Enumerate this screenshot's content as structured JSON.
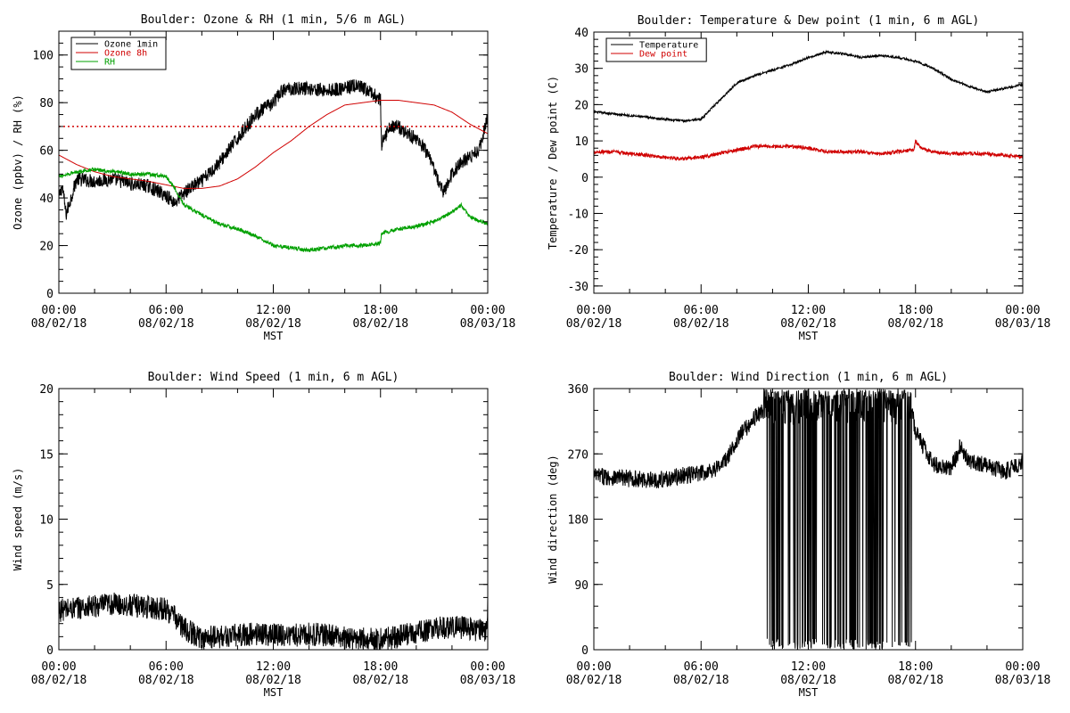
{
  "chart_data": [
    {
      "type": "line",
      "title": "Boulder: Ozone & RH (1 min, 5/6 m AGL)",
      "xlabel": "MST",
      "ylabel": "Ozone (ppbv) / RH (%)",
      "ylim": [
        0,
        110
      ],
      "yticks": [
        "0",
        "20",
        "40",
        "60",
        "80",
        "100"
      ],
      "xticks": [
        {
          "time": "00:00",
          "date": "08/02/18"
        },
        {
          "time": "06:00",
          "date": "08/02/18"
        },
        {
          "time": "12:00",
          "date": "08/02/18"
        },
        {
          "time": "18:00",
          "date": "08/02/18"
        },
        {
          "time": "00:00",
          "date": "08/03/18"
        }
      ],
      "legend_position": "top-left",
      "reference_line": {
        "value": 70,
        "color": "#d00000",
        "style": "dotted"
      },
      "series": [
        {
          "name": "Ozone 1min",
          "color": "#000000",
          "noise": 3.0,
          "x": [
            0,
            0.2,
            0.4,
            1,
            2,
            3,
            4,
            5,
            6,
            6.5,
            7,
            7.5,
            8,
            9,
            10,
            11,
            12,
            12.5,
            13,
            14,
            15,
            16,
            16.5,
            17,
            17.5,
            18,
            18.05,
            18.5,
            19,
            19.5,
            20,
            20.5,
            21,
            21.5,
            22,
            22.5,
            23,
            23.5,
            24
          ],
          "y": [
            40,
            45,
            33,
            48,
            47,
            48,
            46,
            45,
            41,
            38,
            42,
            45,
            47,
            55,
            65,
            75,
            80,
            85,
            86,
            86,
            85,
            86,
            87,
            86,
            84,
            81,
            62,
            70,
            70,
            67,
            65,
            60,
            52,
            42,
            50,
            55,
            57,
            60,
            74
          ]
        },
        {
          "name": "Ozone 8h",
          "color": "#d00000",
          "noise": 0,
          "x": [
            0,
            1,
            2,
            3,
            4,
            5,
            6,
            7,
            8,
            9,
            10,
            11,
            12,
            13,
            14,
            15,
            16,
            17,
            17.5,
            18,
            19,
            20,
            21,
            22,
            23,
            24
          ],
          "y": [
            58,
            54,
            51,
            49,
            48,
            47,
            45.5,
            44,
            44,
            45,
            48,
            53,
            59,
            64,
            70,
            75,
            79,
            80,
            80.5,
            81,
            81,
            80,
            79,
            76,
            71,
            67
          ]
        },
        {
          "name": "RH",
          "color": "#00a000",
          "noise": 0.8,
          "x": [
            0,
            1,
            2,
            3,
            4,
            5,
            6,
            6.5,
            7,
            8,
            9,
            10,
            11,
            12,
            13,
            14,
            15,
            16,
            17,
            18,
            18.05,
            19,
            20,
            21,
            22,
            22.5,
            23,
            24
          ],
          "y": [
            49,
            51,
            52,
            51,
            50,
            50,
            49,
            44,
            37,
            33,
            29,
            27,
            24,
            20,
            19,
            18,
            19,
            20,
            20,
            21,
            25,
            27,
            28,
            30,
            34,
            37,
            32,
            29
          ]
        }
      ]
    },
    {
      "type": "line",
      "title": "Boulder: Temperature & Dew point (1 min, 6 m AGL)",
      "xlabel": "MST",
      "ylabel": "Temperature / Dew point (C)",
      "ylim": [
        -32,
        40
      ],
      "yticks": [
        "-30",
        "-20",
        "-10",
        "0",
        "10",
        "20",
        "30",
        "40"
      ],
      "xticks": [
        {
          "time": "00:00",
          "date": "08/02/18"
        },
        {
          "time": "06:00",
          "date": "08/02/18"
        },
        {
          "time": "12:00",
          "date": "08/02/18"
        },
        {
          "time": "18:00",
          "date": "08/02/18"
        },
        {
          "time": "00:00",
          "date": "08/03/18"
        }
      ],
      "legend_position": "top-left",
      "series": [
        {
          "name": "Temperature",
          "color": "#000000",
          "noise": 0.3,
          "x": [
            0,
            1,
            2,
            3,
            4,
            5,
            6,
            7,
            8,
            9,
            10,
            11,
            12,
            13,
            14,
            15,
            16,
            17,
            18,
            19,
            20,
            21,
            22,
            23,
            24
          ],
          "y": [
            18,
            17.5,
            17,
            16.5,
            16,
            15.5,
            16,
            21,
            26,
            28,
            29.5,
            31,
            33,
            34.5,
            34,
            33,
            33.5,
            33,
            32,
            30,
            27,
            25,
            23.5,
            24.5,
            25.5
          ]
        },
        {
          "name": "Dew point",
          "color": "#d00000",
          "noise": 0.5,
          "x": [
            0,
            1,
            2,
            3,
            4,
            5,
            6,
            7,
            8,
            9,
            10,
            11,
            12,
            13,
            14,
            15,
            16,
            17,
            17.9,
            18,
            18.3,
            19,
            20,
            21,
            22,
            23,
            24
          ],
          "y": [
            7,
            7,
            6.5,
            6,
            5.5,
            5,
            5.5,
            6.5,
            7.5,
            8.5,
            8.5,
            8.5,
            8,
            7,
            7,
            7,
            6.5,
            7,
            7.5,
            10,
            8,
            7,
            6.5,
            6.5,
            6.5,
            6,
            5.5
          ]
        }
      ]
    },
    {
      "type": "line",
      "title": "Boulder: Wind Speed (1 min, 6 m AGL)",
      "xlabel": "MST",
      "ylabel": "Wind speed (m/s)",
      "ylim": [
        0,
        20
      ],
      "yticks": [
        "0",
        "5",
        "10",
        "15",
        "20"
      ],
      "xticks": [
        {
          "time": "00:00",
          "date": "08/02/18"
        },
        {
          "time": "06:00",
          "date": "08/02/18"
        },
        {
          "time": "12:00",
          "date": "08/02/18"
        },
        {
          "time": "18:00",
          "date": "08/02/18"
        },
        {
          "time": "00:00",
          "date": "08/03/18"
        }
      ],
      "series": [
        {
          "name": "",
          "color": "#000000",
          "noise": 0.9,
          "x": [
            0,
            1,
            2,
            3,
            4,
            5,
            6,
            6.5,
            7,
            8,
            9,
            10,
            11,
            12,
            13,
            14,
            15,
            16,
            17,
            18,
            19,
            20,
            21,
            22,
            23,
            23.9,
            24
          ],
          "y": [
            3,
            3.2,
            3.3,
            3.5,
            3.4,
            3.3,
            3.1,
            2.5,
            1.6,
            0.9,
            1,
            1.1,
            1.2,
            1.2,
            1.1,
            1.2,
            1.1,
            0.9,
            0.8,
            0.8,
            1,
            1.3,
            1.6,
            1.8,
            1.6,
            1.4,
            3.5
          ]
        }
      ]
    },
    {
      "type": "line",
      "title": "Boulder: Wind Direction (1 min, 6 m AGL)",
      "xlabel": "MST",
      "ylabel": "Wind direction (deg)",
      "ylim": [
        0,
        360
      ],
      "yticks": [
        "0",
        "90",
        "180",
        "270",
        "360"
      ],
      "xticks": [
        {
          "time": "00:00",
          "date": "08/02/18"
        },
        {
          "time": "06:00",
          "date": "08/02/18"
        },
        {
          "time": "12:00",
          "date": "08/02/18"
        },
        {
          "time": "18:00",
          "date": "08/02/18"
        },
        {
          "time": "00:00",
          "date": "08/03/18"
        }
      ],
      "series": [
        {
          "name": "",
          "color": "#000000",
          "noise": 12,
          "wrap_range": [
            9.5,
            17.8
          ],
          "x": [
            0,
            1,
            2,
            3,
            4,
            5,
            6,
            7,
            7.5,
            8,
            8.5,
            9,
            9.5,
            17.8,
            18,
            19,
            20,
            20.5,
            21,
            22,
            23,
            24
          ],
          "y": [
            240,
            238,
            236,
            234,
            235,
            240,
            243,
            252,
            265,
            290,
            305,
            320,
            330,
            330,
            300,
            255,
            250,
            280,
            260,
            255,
            245,
            260
          ]
        }
      ]
    }
  ]
}
